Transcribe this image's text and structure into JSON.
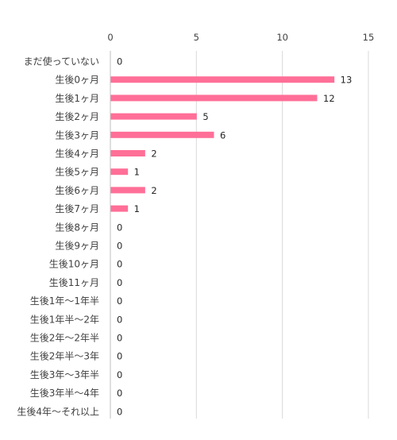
{
  "chart_data": {
    "type": "bar",
    "orientation": "horizontal",
    "categories": [
      "まだ使っていない",
      "生後0ヶ月",
      "生後1ヶ月",
      "生後2ヶ月",
      "生後3ヶ月",
      "生後4ヶ月",
      "生後5ヶ月",
      "生後6ヶ月",
      "生後7ヶ月",
      "生後8ヶ月",
      "生後9ヶ月",
      "生後10ヶ月",
      "生後11ヶ月",
      "生後1年〜1年半",
      "生後1年半〜2年",
      "生後2年〜2年半",
      "生後2年半〜3年",
      "生後3年〜3年半",
      "生後3年半〜4年",
      "生後4年〜それ以上"
    ],
    "values": [
      0,
      13,
      12,
      5,
      6,
      2,
      1,
      2,
      1,
      0,
      0,
      0,
      0,
      0,
      0,
      0,
      0,
      0,
      0,
      0
    ],
    "xlim": [
      0,
      15
    ],
    "xticks": [
      "0",
      "5",
      "10",
      "15"
    ],
    "xtick_values": [
      0,
      5,
      10,
      15
    ],
    "x_axis_position": "top",
    "grid": true,
    "bar_color": "#FF6F97",
    "title": "",
    "xlabel": "",
    "ylabel": ""
  }
}
